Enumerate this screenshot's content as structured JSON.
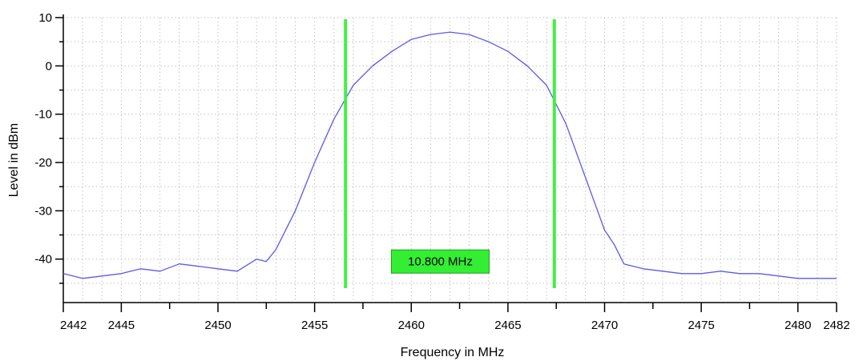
{
  "chart_data": {
    "type": "line",
    "title": "",
    "xlabel": "Frequency in MHz",
    "ylabel": "Level in dBm",
    "xlim": [
      2442,
      2482
    ],
    "ylim": [
      -49,
      10
    ],
    "xticks": [
      2442,
      2445,
      2450,
      2455,
      2460,
      2465,
      2470,
      2475,
      2480,
      2482
    ],
    "yticks": [
      10,
      0,
      -10,
      -20,
      -30,
      -40
    ],
    "grid": true,
    "legend": "none",
    "series": [
      {
        "color": "#5a5aee",
        "x": [
          2442,
          2443,
          2444,
          2445,
          2446,
          2447,
          2448,
          2449,
          2450,
          2451,
          2452,
          2452.5,
          2453,
          2454,
          2455,
          2456,
          2457,
          2458,
          2459,
          2460,
          2461,
          2462,
          2463,
          2464,
          2465,
          2466,
          2467,
          2468,
          2469,
          2470,
          2470.5,
          2471,
          2472,
          2473,
          2474,
          2475,
          2476,
          2477,
          2478,
          2479,
          2480,
          2481,
          2482
        ],
        "y": [
          -43,
          -44,
          -43.5,
          -43,
          -42,
          -42.5,
          -41,
          -41.5,
          -42,
          -42.5,
          -40,
          -40.5,
          -38,
          -30,
          -20,
          -11,
          -4,
          0,
          3,
          5.5,
          6.5,
          7,
          6.5,
          5,
          3,
          0,
          -4,
          -12,
          -23,
          -34,
          -37,
          -41,
          -42,
          -42.5,
          -43,
          -43,
          -42.5,
          -43,
          -43,
          -43.5,
          -44,
          -44,
          -44
        ]
      }
    ],
    "markers": [
      {
        "x": 2456.6,
        "color": "#44ee44"
      },
      {
        "x": 2467.4,
        "color": "#44ee44"
      }
    ],
    "annotations": [
      {
        "text": "10.800 MHz",
        "x": 2461.5,
        "y": -40.5,
        "background": "#33ee33"
      }
    ]
  }
}
